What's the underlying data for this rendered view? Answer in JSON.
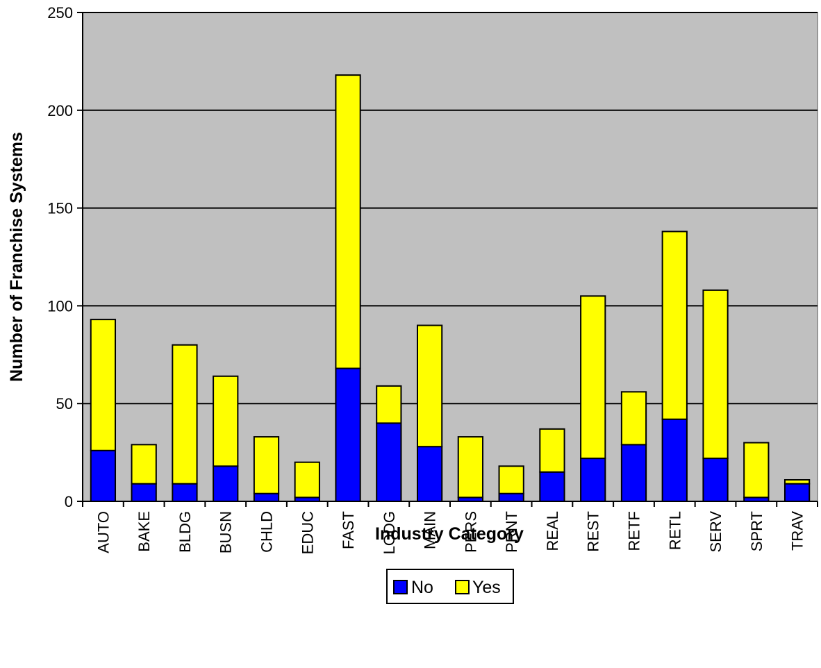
{
  "chart_data": {
    "type": "bar",
    "stacked": true,
    "xlabel": "Industry Category",
    "ylabel": "Number of Franchise Systems",
    "ylim": [
      0,
      250
    ],
    "yticks": [
      "0",
      "50",
      "100",
      "150",
      "200",
      "250"
    ],
    "grid": true,
    "legend_position": "bottom",
    "categories": [
      "AUTO",
      "BAKE",
      "BLDG",
      "BUSN",
      "CHLD",
      "EDUC",
      "FAST",
      "LODG",
      "MAIN",
      "PERS",
      "PRNT",
      "REAL",
      "REST",
      "RETF",
      "RETL",
      "SERV",
      "SPRT",
      "TRAV"
    ],
    "series": [
      {
        "name": "No",
        "color": "#0000ff",
        "values": [
          26,
          9,
          9,
          18,
          4,
          2,
          68,
          40,
          28,
          2,
          4,
          15,
          22,
          29,
          42,
          22,
          2,
          9
        ]
      },
      {
        "name": "Yes",
        "color": "#ffff00",
        "values": [
          67,
          20,
          71,
          46,
          29,
          18,
          150,
          19,
          62,
          31,
          14,
          22,
          83,
          27,
          96,
          86,
          28,
          2
        ]
      }
    ],
    "plot_background": "#c0c0c0"
  }
}
